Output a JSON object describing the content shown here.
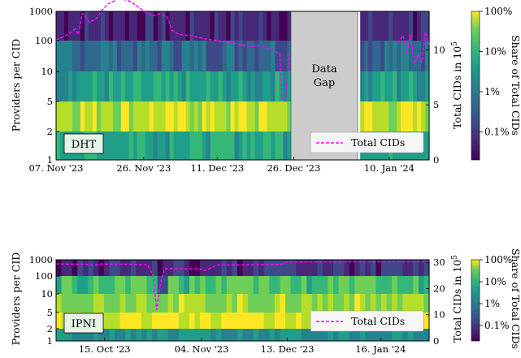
{
  "chart_data": [
    {
      "type": "heatmap",
      "panel_label": "DHT",
      "ylabel": "Providers per CID",
      "y_bins": [
        1,
        2,
        5,
        10,
        100,
        1000
      ],
      "y_tick_labels": [
        "1",
        "2",
        "5",
        "10",
        "100",
        "1000"
      ],
      "x_tick_labels": [
        "07. Nov '23",
        "26. Nov '23",
        "11. Dec '23",
        "26. Dec '23",
        "10. Jan '24"
      ],
      "secondary_ylabel": "Total CIDs in 10⁵",
      "secondary_ylabel_base": "Total CIDs in 10",
      "secondary_ylabel_exp": "5",
      "secondary_y_ticks": [
        "0",
        "5",
        "10"
      ],
      "secondary_ylim": [
        0,
        13.5
      ],
      "gap_label_line1": "Data",
      "gap_label_line2": "Gap",
      "legend": "Total CIDs",
      "colorbar_label": "Share of Total CIDs",
      "colorbar_ticks": [
        "0.1%",
        "1%",
        "10%",
        "100%"
      ],
      "colorbar_scale": "log",
      "row_share_levels": [
        0.6,
        0.9,
        0.55,
        0.35,
        0.12
      ],
      "total_cids_series": [
        {
          "x": 0.0,
          "y": 10.9
        },
        {
          "x": 0.02,
          "y": 11.2
        },
        {
          "x": 0.04,
          "y": 11.6
        },
        {
          "x": 0.05,
          "y": 11.9
        },
        {
          "x": 0.06,
          "y": 11.4
        },
        {
          "x": 0.07,
          "y": 13.3
        },
        {
          "x": 0.075,
          "y": 13.2
        },
        {
          "x": 0.09,
          "y": 12.5
        },
        {
          "x": 0.11,
          "y": 12.9
        },
        {
          "x": 0.12,
          "y": 13.5
        },
        {
          "x": 0.14,
          "y": 14.2
        },
        {
          "x": 0.16,
          "y": 14.5
        },
        {
          "x": 0.17,
          "y": 14.9
        },
        {
          "x": 0.18,
          "y": 14.6
        },
        {
          "x": 0.2,
          "y": 14.4
        },
        {
          "x": 0.22,
          "y": 13.9
        },
        {
          "x": 0.24,
          "y": 13.4
        },
        {
          "x": 0.26,
          "y": 13.1
        },
        {
          "x": 0.28,
          "y": 13.3
        },
        {
          "x": 0.3,
          "y": 12.9
        },
        {
          "x": 0.31,
          "y": 11.8
        },
        {
          "x": 0.33,
          "y": 11.4
        },
        {
          "x": 0.36,
          "y": 11.3
        },
        {
          "x": 0.4,
          "y": 11.0
        },
        {
          "x": 0.44,
          "y": 10.8
        },
        {
          "x": 0.48,
          "y": 10.6
        },
        {
          "x": 0.52,
          "y": 10.3
        },
        {
          "x": 0.55,
          "y": 10.4
        },
        {
          "x": 0.58,
          "y": 10.0
        },
        {
          "x": 0.6,
          "y": 9.6
        },
        {
          "x": 0.605,
          "y": 5.6
        },
        {
          "x": 0.615,
          "y": 5.5
        },
        {
          "x": 0.625,
          "y": 9.8
        },
        {
          "x": 0.64,
          "y": 10.2
        },
        {
          "x": 0.66,
          "y": 10.4
        },
        {
          "x": 0.68,
          "y": 10.6
        },
        {
          "x": 0.695,
          "y": 10.3
        },
        {
          "x": 0.915,
          "y": 10.6
        },
        {
          "x": 0.93,
          "y": 11.3
        },
        {
          "x": 0.94,
          "y": 9.7
        },
        {
          "x": 0.95,
          "y": 11.4
        },
        {
          "x": 0.96,
          "y": 8.7
        },
        {
          "x": 0.97,
          "y": 9.6
        },
        {
          "x": 0.98,
          "y": 8.9
        },
        {
          "x": 0.99,
          "y": 11.6
        },
        {
          "x": 1.0,
          "y": 10.5
        }
      ]
    },
    {
      "type": "heatmap",
      "panel_label": "IPNI",
      "ylabel": "Providers per CID",
      "y_bins": [
        1,
        2,
        5,
        10,
        100,
        1000
      ],
      "y_tick_labels": [
        "1",
        "2",
        "5",
        "10",
        "100",
        "1000"
      ],
      "x_tick_labels": [
        "15. Oct '23",
        "04. Nov '23",
        "13. Dec '23",
        "16. Jan '24"
      ],
      "secondary_ylabel": "Total CIDs in 10⁵",
      "secondary_ylabel_base": "Total CIDs in 10",
      "secondary_ylabel_exp": "5",
      "secondary_y_ticks": [
        "0",
        "10",
        "20",
        "30"
      ],
      "secondary_ylim": [
        0,
        31
      ],
      "legend": "Total CIDs",
      "colorbar_label": "Share of Total CIDs",
      "colorbar_ticks": [
        "0.1%",
        "1%",
        "10%",
        "100%"
      ],
      "colorbar_scale": "log",
      "row_share_levels": [
        0.5,
        0.95,
        0.85,
        0.7,
        0.15
      ],
      "total_cids_series": [
        {
          "x": 0.0,
          "y": 29.4
        },
        {
          "x": 0.08,
          "y": 29.3
        },
        {
          "x": 0.1,
          "y": 28.9
        },
        {
          "x": 0.12,
          "y": 29.4
        },
        {
          "x": 0.2,
          "y": 29.3
        },
        {
          "x": 0.245,
          "y": 29.1
        },
        {
          "x": 0.26,
          "y": 25.0
        },
        {
          "x": 0.27,
          "y": 11.9
        },
        {
          "x": 0.28,
          "y": 22.0
        },
        {
          "x": 0.29,
          "y": 27.5
        },
        {
          "x": 0.31,
          "y": 27.7
        },
        {
          "x": 0.34,
          "y": 27.5
        },
        {
          "x": 0.38,
          "y": 27.6
        },
        {
          "x": 0.4,
          "y": 26.9
        },
        {
          "x": 0.41,
          "y": 27.5
        },
        {
          "x": 0.43,
          "y": 29.0
        },
        {
          "x": 0.55,
          "y": 29.1
        },
        {
          "x": 0.6,
          "y": 29.2
        },
        {
          "x": 0.62,
          "y": 30.1
        },
        {
          "x": 0.7,
          "y": 30.2
        },
        {
          "x": 1.0,
          "y": 30.3
        }
      ]
    }
  ]
}
